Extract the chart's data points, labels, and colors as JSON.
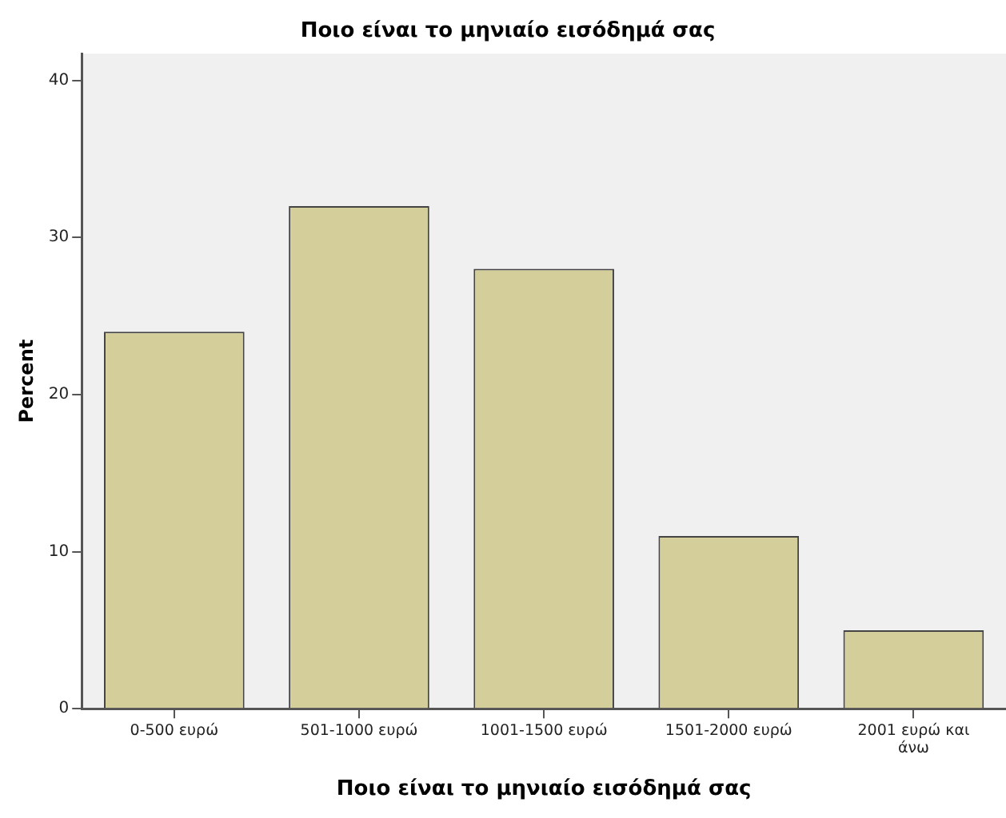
{
  "chart_data": {
    "type": "bar",
    "title": "Ποιο είναι το μηνιαίο εισόδημά σας",
    "xlabel": "Ποιο είναι το μηνιαίο εισόδημά σας",
    "ylabel": "Percent",
    "categories": [
      "0-500 ευρώ",
      "501-1000 ευρώ",
      "1001-1500 ευρώ",
      "1501-2000 ευρώ",
      "2001 ευρώ και άνω"
    ],
    "values": [
      24,
      32,
      28,
      11,
      5
    ],
    "color": "#d3ce9a",
    "ylim": [
      0,
      41.7
    ],
    "yticks": [
      0,
      10,
      20,
      30,
      40
    ],
    "grid": false,
    "legend": false
  }
}
